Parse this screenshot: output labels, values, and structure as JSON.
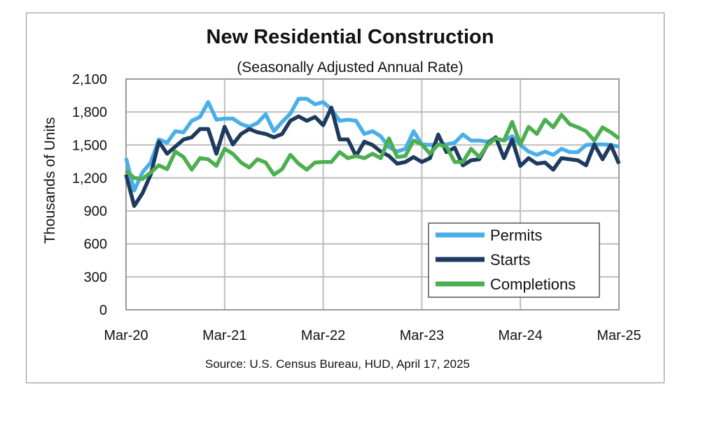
{
  "chart_data": {
    "type": "line",
    "title": "New Residential Construction",
    "subtitle": "(Seasonally Adjusted Annual Rate)",
    "ylabel": "Thousands of Units",
    "xlabel": "",
    "source": "Source:  U.S. Census Bureau, HUD, April 17, 2025",
    "ylim": [
      0,
      2100
    ],
    "y_ticks": [
      "0",
      "300",
      "600",
      "900",
      "1,200",
      "1,500",
      "1,800",
      "2,100"
    ],
    "x_ticks": [
      "Mar-20",
      "Mar-21",
      "Mar-22",
      "Mar-23",
      "Mar-24",
      "Mar-25"
    ],
    "x_range": [
      "Mar-20",
      "Mar-25"
    ],
    "x_frequency": "monthly",
    "grid": true,
    "legend_position": "bottom-right",
    "series": [
      {
        "name": "Permits",
        "color": "#4aaee8",
        "values": [
          1380,
          1085,
          1250,
          1340,
          1550,
          1520,
          1625,
          1615,
          1720,
          1755,
          1890,
          1730,
          1740,
          1740,
          1690,
          1665,
          1700,
          1780,
          1625,
          1710,
          1785,
          1920,
          1920,
          1870,
          1890,
          1825,
          1720,
          1730,
          1720,
          1600,
          1625,
          1580,
          1480,
          1440,
          1465,
          1625,
          1505,
          1500,
          1505,
          1505,
          1520,
          1595,
          1540,
          1540,
          1530,
          1560,
          1540,
          1580,
          1500,
          1440,
          1410,
          1440,
          1410,
          1465,
          1435,
          1435,
          1500,
          1505,
          1505,
          1500,
          1485
        ]
      },
      {
        "name": "Starts",
        "color": "#1f3a5f",
        "values": [
          1230,
          945,
          1060,
          1230,
          1530,
          1420,
          1485,
          1550,
          1570,
          1645,
          1645,
          1420,
          1665,
          1505,
          1600,
          1645,
          1615,
          1600,
          1570,
          1600,
          1720,
          1760,
          1720,
          1755,
          1680,
          1840,
          1550,
          1550,
          1400,
          1530,
          1500,
          1440,
          1400,
          1330,
          1345,
          1390,
          1345,
          1380,
          1595,
          1435,
          1475,
          1315,
          1360,
          1370,
          1505,
          1570,
          1380,
          1550,
          1310,
          1380,
          1330,
          1340,
          1275,
          1380,
          1370,
          1360,
          1315,
          1505,
          1370,
          1500,
          1330
        ]
      },
      {
        "name": "Completions",
        "color": "#4caf50",
        "values": [
          1265,
          1200,
          1190,
          1250,
          1315,
          1280,
          1440,
          1390,
          1275,
          1380,
          1370,
          1310,
          1465,
          1420,
          1340,
          1295,
          1370,
          1340,
          1230,
          1280,
          1410,
          1330,
          1275,
          1340,
          1345,
          1345,
          1435,
          1380,
          1400,
          1380,
          1420,
          1380,
          1560,
          1390,
          1400,
          1540,
          1505,
          1420,
          1505,
          1485,
          1345,
          1345,
          1465,
          1390,
          1500,
          1560,
          1540,
          1710,
          1505,
          1665,
          1600,
          1730,
          1660,
          1775,
          1690,
          1660,
          1625,
          1540,
          1660,
          1615,
          1560
        ]
      }
    ]
  }
}
